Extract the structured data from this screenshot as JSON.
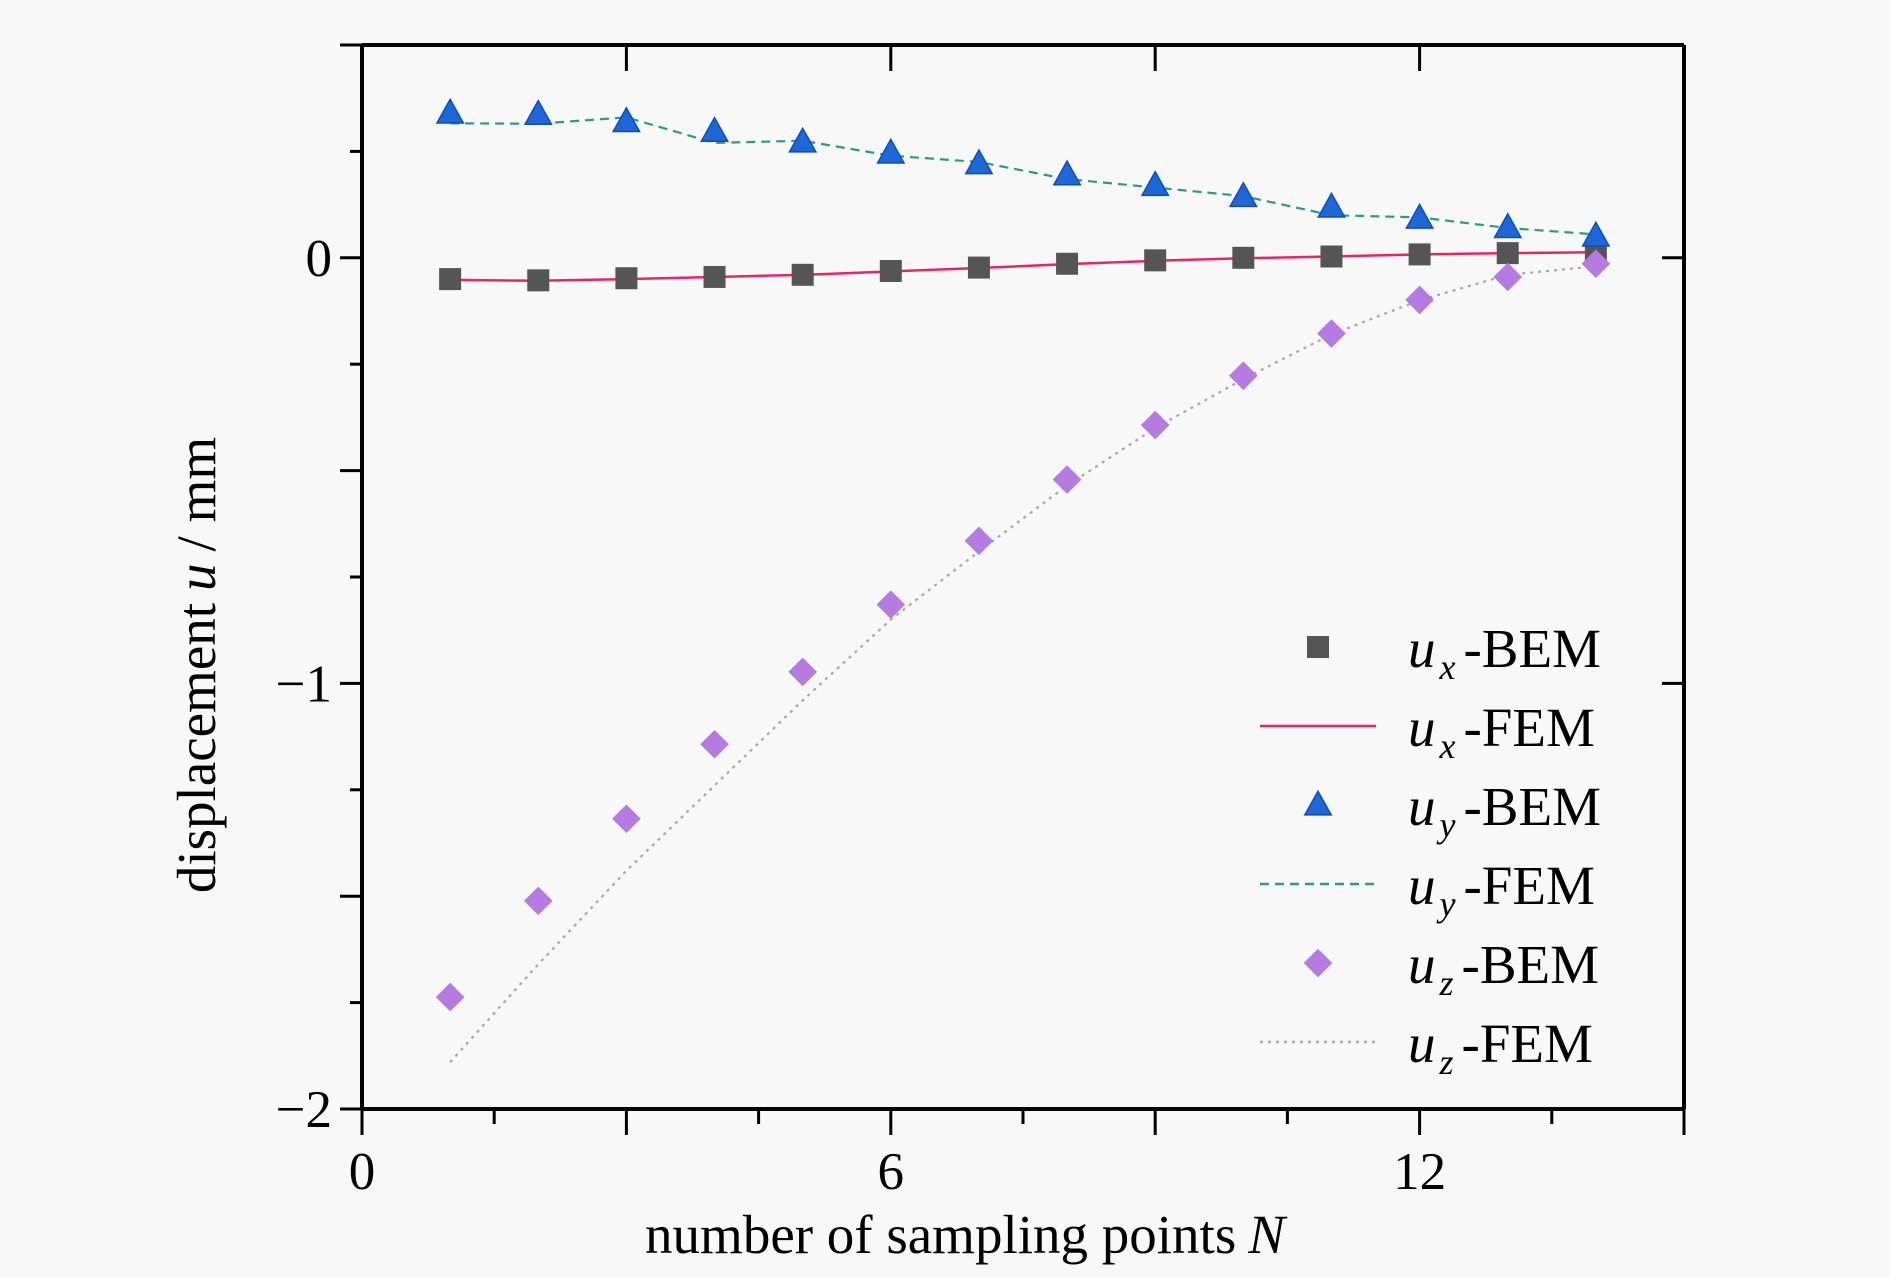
{
  "chart_data": {
    "type": "scatter",
    "title": "",
    "xlabel": "number of sampling points",
    "xlabel_var": "N",
    "ylabel": "displacement",
    "ylabel_var": "u",
    "ylabel_unit": "/ mm",
    "xlim": [
      0,
      15
    ],
    "ylim": [
      -2,
      0.5
    ],
    "x_ticks": [
      0,
      6,
      12
    ],
    "x_tick_labels": [
      "0",
      "6",
      "12"
    ],
    "x_minor_step": 1.5,
    "y_ticks": [
      0,
      -1,
      -2
    ],
    "y_tick_labels": [
      "0",
      "−1",
      "−2"
    ],
    "y_minor_step": 0.25,
    "grid": false,
    "legend_position": "bottom-right",
    "x": [
      1,
      2,
      3,
      4,
      5,
      6,
      7,
      8,
      9,
      10,
      11,
      12,
      13,
      14
    ],
    "series": [
      {
        "name": "ux-BEM",
        "var": "u",
        "sub": "x",
        "method": "-BEM",
        "kind": "marker",
        "marker": "square",
        "color": "#555555",
        "values": [
          -0.05,
          -0.053,
          -0.048,
          -0.045,
          -0.04,
          -0.031,
          -0.023,
          -0.014,
          -0.006,
          0.0,
          0.003,
          0.008,
          0.011,
          0.014
        ]
      },
      {
        "name": "ux-FEM",
        "var": "u",
        "sub": "x",
        "method": "-FEM",
        "kind": "line",
        "dash": "solid",
        "color": "#e8256a",
        "values": [
          -0.052,
          -0.054,
          -0.05,
          -0.045,
          -0.04,
          -0.032,
          -0.024,
          -0.015,
          -0.007,
          -0.001,
          0.003,
          0.008,
          0.011,
          0.013
        ]
      },
      {
        "name": "uy-BEM",
        "var": "u",
        "sub": "y",
        "method": "-BEM",
        "kind": "marker",
        "marker": "triangle",
        "color": "#1f66d6",
        "values": [
          0.34,
          0.337,
          0.32,
          0.297,
          0.272,
          0.246,
          0.221,
          0.195,
          0.17,
          0.144,
          0.119,
          0.093,
          0.071,
          0.051
        ]
      },
      {
        "name": "uy-FEM",
        "var": "u",
        "sub": "y",
        "method": "-FEM",
        "kind": "line",
        "dash": "dashed",
        "color": "#2a9d7e",
        "values": [
          0.316,
          0.315,
          0.33,
          0.27,
          0.275,
          0.24,
          0.225,
          0.185,
          0.165,
          0.145,
          0.1,
          0.095,
          0.07,
          0.055
        ]
      },
      {
        "name": "uz-BEM",
        "var": "u",
        "sub": "z",
        "method": "-BEM",
        "kind": "marker",
        "marker": "diamond",
        "color": "#b57be0",
        "values": [
          -1.737,
          -1.511,
          -1.318,
          -1.143,
          -0.973,
          -0.815,
          -0.665,
          -0.521,
          -0.393,
          -0.277,
          -0.178,
          -0.099,
          -0.045,
          -0.014
        ]
      },
      {
        "name": "uz-FEM",
        "var": "u",
        "sub": "z",
        "method": "-FEM",
        "kind": "line",
        "dash": "dotted",
        "color": "#a8a8a8",
        "values": [
          -1.89,
          -1.66,
          -1.44,
          -1.24,
          -1.04,
          -0.85,
          -0.69,
          -0.535,
          -0.4,
          -0.285,
          -0.18,
          -0.1,
          -0.04,
          -0.02
        ]
      }
    ]
  }
}
